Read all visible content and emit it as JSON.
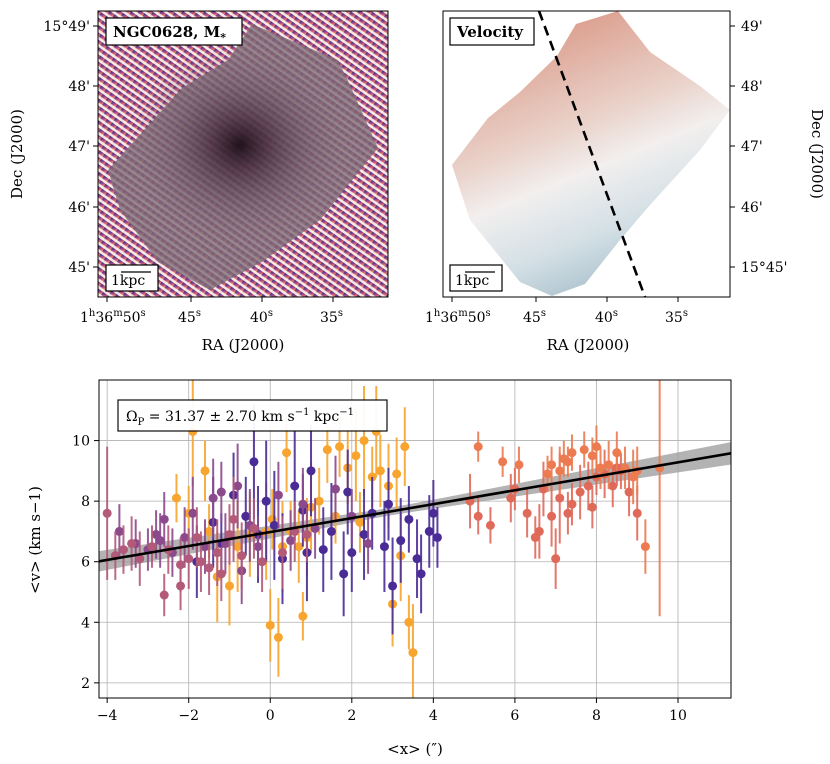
{
  "panels": {
    "stellar_mass": {
      "label": "NGC0628, M",
      "label_sub": "*",
      "scalebar": "1kpc",
      "xlabel": "RA (J2000)",
      "ylabel": "Dec (J2000)",
      "xticks": [
        "1h36m50s",
        "45s",
        "40s",
        "35s"
      ],
      "xtick_first": {
        "h": "1",
        "m": "36",
        "s": "50"
      },
      "yticks": [
        "15°49'",
        "48'",
        "47'",
        "46'",
        "45'"
      ]
    },
    "velocity": {
      "label": "Velocity",
      "scalebar": "1kpc",
      "xlabel": "RA (J2000)",
      "ylabel": "Dec (J2000)",
      "xticks": [
        "1h36m50s",
        "45s",
        "40s",
        "35s"
      ],
      "xtick_first": {
        "h": "1",
        "m": "36",
        "s": "50"
      },
      "yticks": [
        "49'",
        "48'",
        "47'",
        "46'",
        "15°45'"
      ]
    }
  },
  "colors": {
    "fit_line": "#000000",
    "fit_band": "#9a9a9a",
    "series": [
      "#f7a52e",
      "#4b2c96",
      "#8b4a8c",
      "#b35a79",
      "#e06a5a",
      "#ec7b51"
    ]
  },
  "chart_data": {
    "type": "scatter",
    "title": "",
    "annotation": "ΩP = 31.37 ± 2.70 km s−1 kpc−1",
    "annotation_parts": {
      "sym": "Ω",
      "sub": "P",
      "value": " = 31.37 ± 2.70 km s",
      "exp1": "−1",
      "mid": " kpc",
      "exp2": "−1"
    },
    "xlabel": "<x> (″)",
    "ylabel": "<v> (km s−1)",
    "xlim": [
      -4.2,
      11.3
    ],
    "ylim": [
      1.5,
      12.0
    ],
    "xticks": [
      -4,
      -2,
      0,
      2,
      4,
      6,
      8,
      10
    ],
    "yticks": [
      2,
      4,
      6,
      8,
      10
    ],
    "xtick_labels": [
      "−4",
      "−2",
      "0",
      "2",
      "4",
      "6",
      "8",
      "10"
    ],
    "ytick_labels": [
      "2",
      "4",
      "6",
      "8",
      "10"
    ],
    "grid": true,
    "fit": {
      "slope": 0.23,
      "intercept": 6.98,
      "band": 0.12
    },
    "series": [
      {
        "name": "slice-orange",
        "color": "#f7a52e",
        "points": [
          [
            -2.3,
            8.1,
            0.8
          ],
          [
            -2.0,
            7.6,
            0.9
          ],
          [
            -1.9,
            10.3,
            1.8
          ],
          [
            -1.6,
            9.0,
            1.0
          ],
          [
            -1.5,
            7.0,
            0.9
          ],
          [
            -1.3,
            5.5,
            1.5
          ],
          [
            -1.0,
            5.2,
            1.3
          ],
          [
            -0.8,
            6.5,
            1.5
          ],
          [
            -0.5,
            6.9,
            1.4
          ],
          [
            -0.1,
            7.0,
            1.6
          ],
          [
            0.0,
            3.9,
            1.2
          ],
          [
            0.05,
            7.4,
            1.0
          ],
          [
            0.2,
            3.5,
            1.3
          ],
          [
            0.3,
            6.5,
            1.5
          ],
          [
            0.5,
            7.0,
            1.0
          ],
          [
            0.7,
            6.5,
            1.2
          ],
          [
            0.9,
            6.8,
            1.3
          ],
          [
            1.0,
            7.8,
            1.5
          ],
          [
            1.2,
            8.0,
            1.1
          ],
          [
            1.4,
            9.7,
            1.1
          ],
          [
            1.7,
            9.8,
            1.0
          ],
          [
            1.9,
            9.1,
            1.2
          ],
          [
            2.1,
            9.5,
            1.5
          ],
          [
            2.3,
            10.0,
            1.8
          ],
          [
            2.5,
            8.8,
            1.0
          ],
          [
            2.7,
            9.0,
            1.2
          ],
          [
            2.9,
            8.5,
            1.4
          ],
          [
            3.1,
            8.9,
            1.2
          ],
          [
            3.3,
            9.8,
            1.3
          ],
          [
            3.2,
            6.2,
            1.5
          ],
          [
            3.0,
            4.6,
            1.4
          ],
          [
            3.5,
            3.0,
            1.6
          ],
          [
            0.4,
            9.6,
            1.3
          ],
          [
            1.6,
            7.5,
            0.9
          ],
          [
            2.6,
            10.3,
            1.5
          ],
          [
            0.8,
            4.2,
            0.8
          ],
          [
            3.4,
            4.0,
            0.9
          ],
          [
            2.2,
            7.3,
            1.0
          ]
        ]
      },
      {
        "name": "slice-purple",
        "color": "#4b2c96",
        "points": [
          [
            -1.8,
            6.0,
            1.2
          ],
          [
            -1.4,
            7.3,
            1.5
          ],
          [
            -1.2,
            6.6,
            1.0
          ],
          [
            -0.9,
            8.2,
            1.4
          ],
          [
            -0.6,
            7.5,
            1.3
          ],
          [
            -0.3,
            6.9,
            1.6
          ],
          [
            -0.1,
            8.0,
            2.0
          ],
          [
            0.1,
            7.2,
            1.8
          ],
          [
            0.3,
            6.1,
            1.5
          ],
          [
            0.6,
            8.5,
            1.8
          ],
          [
            0.8,
            7.7,
            1.2
          ],
          [
            1.0,
            9.0,
            1.5
          ],
          [
            1.3,
            6.4,
            1.4
          ],
          [
            1.5,
            7.0,
            1.6
          ],
          [
            1.8,
            5.6,
            1.4
          ],
          [
            2.0,
            6.3,
            1.3
          ],
          [
            2.3,
            6.9,
            1.5
          ],
          [
            2.5,
            7.6,
            1.2
          ],
          [
            2.8,
            6.5,
            1.5
          ],
          [
            3.0,
            5.2,
            1.6
          ],
          [
            3.2,
            6.7,
            1.4
          ],
          [
            3.4,
            7.4,
            1.1
          ],
          [
            3.6,
            6.1,
            1.3
          ],
          [
            3.9,
            7.0,
            1.2
          ],
          [
            4.1,
            6.8,
            1.0
          ],
          [
            3.7,
            5.6,
            1.3
          ],
          [
            2.9,
            7.9,
            1.2
          ],
          [
            1.9,
            8.3,
            1.4
          ],
          [
            0.9,
            6.3,
            1.6
          ],
          [
            -0.4,
            9.3,
            1.9
          ],
          [
            4.0,
            7.6,
            1.1
          ]
        ]
      },
      {
        "name": "slice-violet",
        "color": "#8b4a8c",
        "points": [
          [
            -3.7,
            7.0,
            0.9
          ],
          [
            -3.3,
            6.6,
            0.8
          ],
          [
            -3.0,
            6.4,
            0.7
          ],
          [
            -2.8,
            6.9,
            0.8
          ],
          [
            -2.6,
            7.4,
            0.9
          ],
          [
            -2.4,
            6.3,
            0.8
          ],
          [
            -2.1,
            6.8,
            1.0
          ],
          [
            -1.9,
            7.6,
            1.2
          ],
          [
            -1.6,
            6.5,
            0.9
          ],
          [
            -1.4,
            8.1,
            1.3
          ],
          [
            -1.1,
            6.6,
            1.0
          ],
          [
            -0.8,
            8.5,
            1.4
          ],
          [
            -0.5,
            7.2,
            1.2
          ],
          [
            -0.3,
            6.5,
            1.0
          ],
          [
            0.2,
            8.2,
            1.1
          ],
          [
            0.5,
            6.7,
            1.0
          ],
          [
            0.8,
            7.9,
            1.2
          ],
          [
            1.1,
            7.1,
            1.0
          ],
          [
            1.6,
            8.4,
            1.1
          ],
          [
            2.0,
            7.5,
            0.9
          ],
          [
            2.4,
            6.6,
            1.0
          ],
          [
            -1.2,
            8.3,
            1.0
          ],
          [
            -0.7,
            5.7,
            1.1
          ],
          [
            -2.7,
            6.7,
            0.9
          ]
        ]
      },
      {
        "name": "slice-mauve",
        "color": "#b35a79",
        "points": [
          [
            -4.0,
            7.6,
            2.2
          ],
          [
            -3.6,
            6.4,
            0.8
          ],
          [
            -3.2,
            6.1,
            0.9
          ],
          [
            -2.9,
            6.5,
            0.7
          ],
          [
            -2.5,
            6.4,
            0.8
          ],
          [
            -2.2,
            5.9,
            0.9
          ],
          [
            -2.0,
            6.1,
            1.0
          ],
          [
            -1.7,
            6.0,
            1.0
          ],
          [
            -1.5,
            5.8,
            0.9
          ],
          [
            -1.3,
            6.3,
            1.1
          ],
          [
            -1.0,
            6.9,
            1.0
          ],
          [
            -0.7,
            6.2,
            1.1
          ],
          [
            -0.4,
            7.1,
            1.0
          ],
          [
            -0.2,
            6.0,
            1.0
          ],
          [
            0.3,
            6.3,
            1.2
          ],
          [
            0.6,
            7.0,
            1.0
          ],
          [
            -3.8,
            6.2,
            0.8
          ],
          [
            -2.6,
            4.9,
            0.7
          ],
          [
            -2.2,
            5.2,
            0.8
          ],
          [
            -1.2,
            5.6,
            0.9
          ],
          [
            -0.9,
            7.4,
            1.4
          ],
          [
            -1.8,
            6.8,
            1.0
          ],
          [
            0.9,
            6.9,
            0.9
          ],
          [
            -3.4,
            6.6,
            0.9
          ]
        ]
      },
      {
        "name": "slice-red",
        "color": "#e06a5a",
        "points": [
          [
            4.9,
            8.0,
            0.9
          ],
          [
            5.4,
            7.2,
            0.6
          ],
          [
            6.0,
            8.4,
            0.7
          ],
          [
            6.3,
            7.6,
            0.8
          ],
          [
            6.6,
            7.0,
            0.9
          ],
          [
            6.9,
            7.5,
            1.0
          ],
          [
            7.1,
            8.1,
            1.5
          ],
          [
            7.4,
            7.9,
            0.7
          ],
          [
            7.6,
            8.3,
            0.9
          ],
          [
            7.8,
            8.5,
            0.8
          ],
          [
            8.0,
            8.8,
            0.6
          ],
          [
            8.2,
            8.9,
            0.8
          ],
          [
            8.4,
            8.5,
            0.7
          ],
          [
            8.6,
            9.0,
            0.6
          ],
          [
            8.8,
            8.3,
            0.8
          ],
          [
            9.0,
            7.6,
            0.9
          ],
          [
            6.5,
            6.8,
            0.7
          ],
          [
            7.0,
            6.1,
            1.0
          ],
          [
            5.9,
            8.1,
            0.8
          ],
          [
            7.3,
            7.6,
            0.7
          ],
          [
            8.5,
            9.1,
            0.6
          ],
          [
            5.1,
            7.5,
            0.6
          ],
          [
            6.7,
            8.4,
            0.9
          ],
          [
            7.9,
            7.8,
            0.7
          ]
        ]
      },
      {
        "name": "slice-coral",
        "color": "#ec7b51",
        "points": [
          [
            5.1,
            9.8,
            0.5
          ],
          [
            5.7,
            9.3,
            0.5
          ],
          [
            6.1,
            9.2,
            0.6
          ],
          [
            6.9,
            9.2,
            0.6
          ],
          [
            7.1,
            9.0,
            0.8
          ],
          [
            7.4,
            9.6,
            0.6
          ],
          [
            7.7,
            9.7,
            0.6
          ],
          [
            8.0,
            9.8,
            0.7
          ],
          [
            8.3,
            9.2,
            0.8
          ],
          [
            8.5,
            9.6,
            0.7
          ],
          [
            8.7,
            9.1,
            0.7
          ],
          [
            8.9,
            8.8,
            0.9
          ],
          [
            9.2,
            6.5,
            0.9
          ],
          [
            9.55,
            9.1,
            4.9
          ],
          [
            7.2,
            9.4,
            0.6
          ],
          [
            7.9,
            9.5,
            0.6
          ],
          [
            8.1,
            9.1,
            0.7
          ],
          [
            6.8,
            8.9,
            0.6
          ],
          [
            7.3,
            9.3,
            0.5
          ],
          [
            9.0,
            9.0,
            0.8
          ]
        ]
      }
    ]
  }
}
